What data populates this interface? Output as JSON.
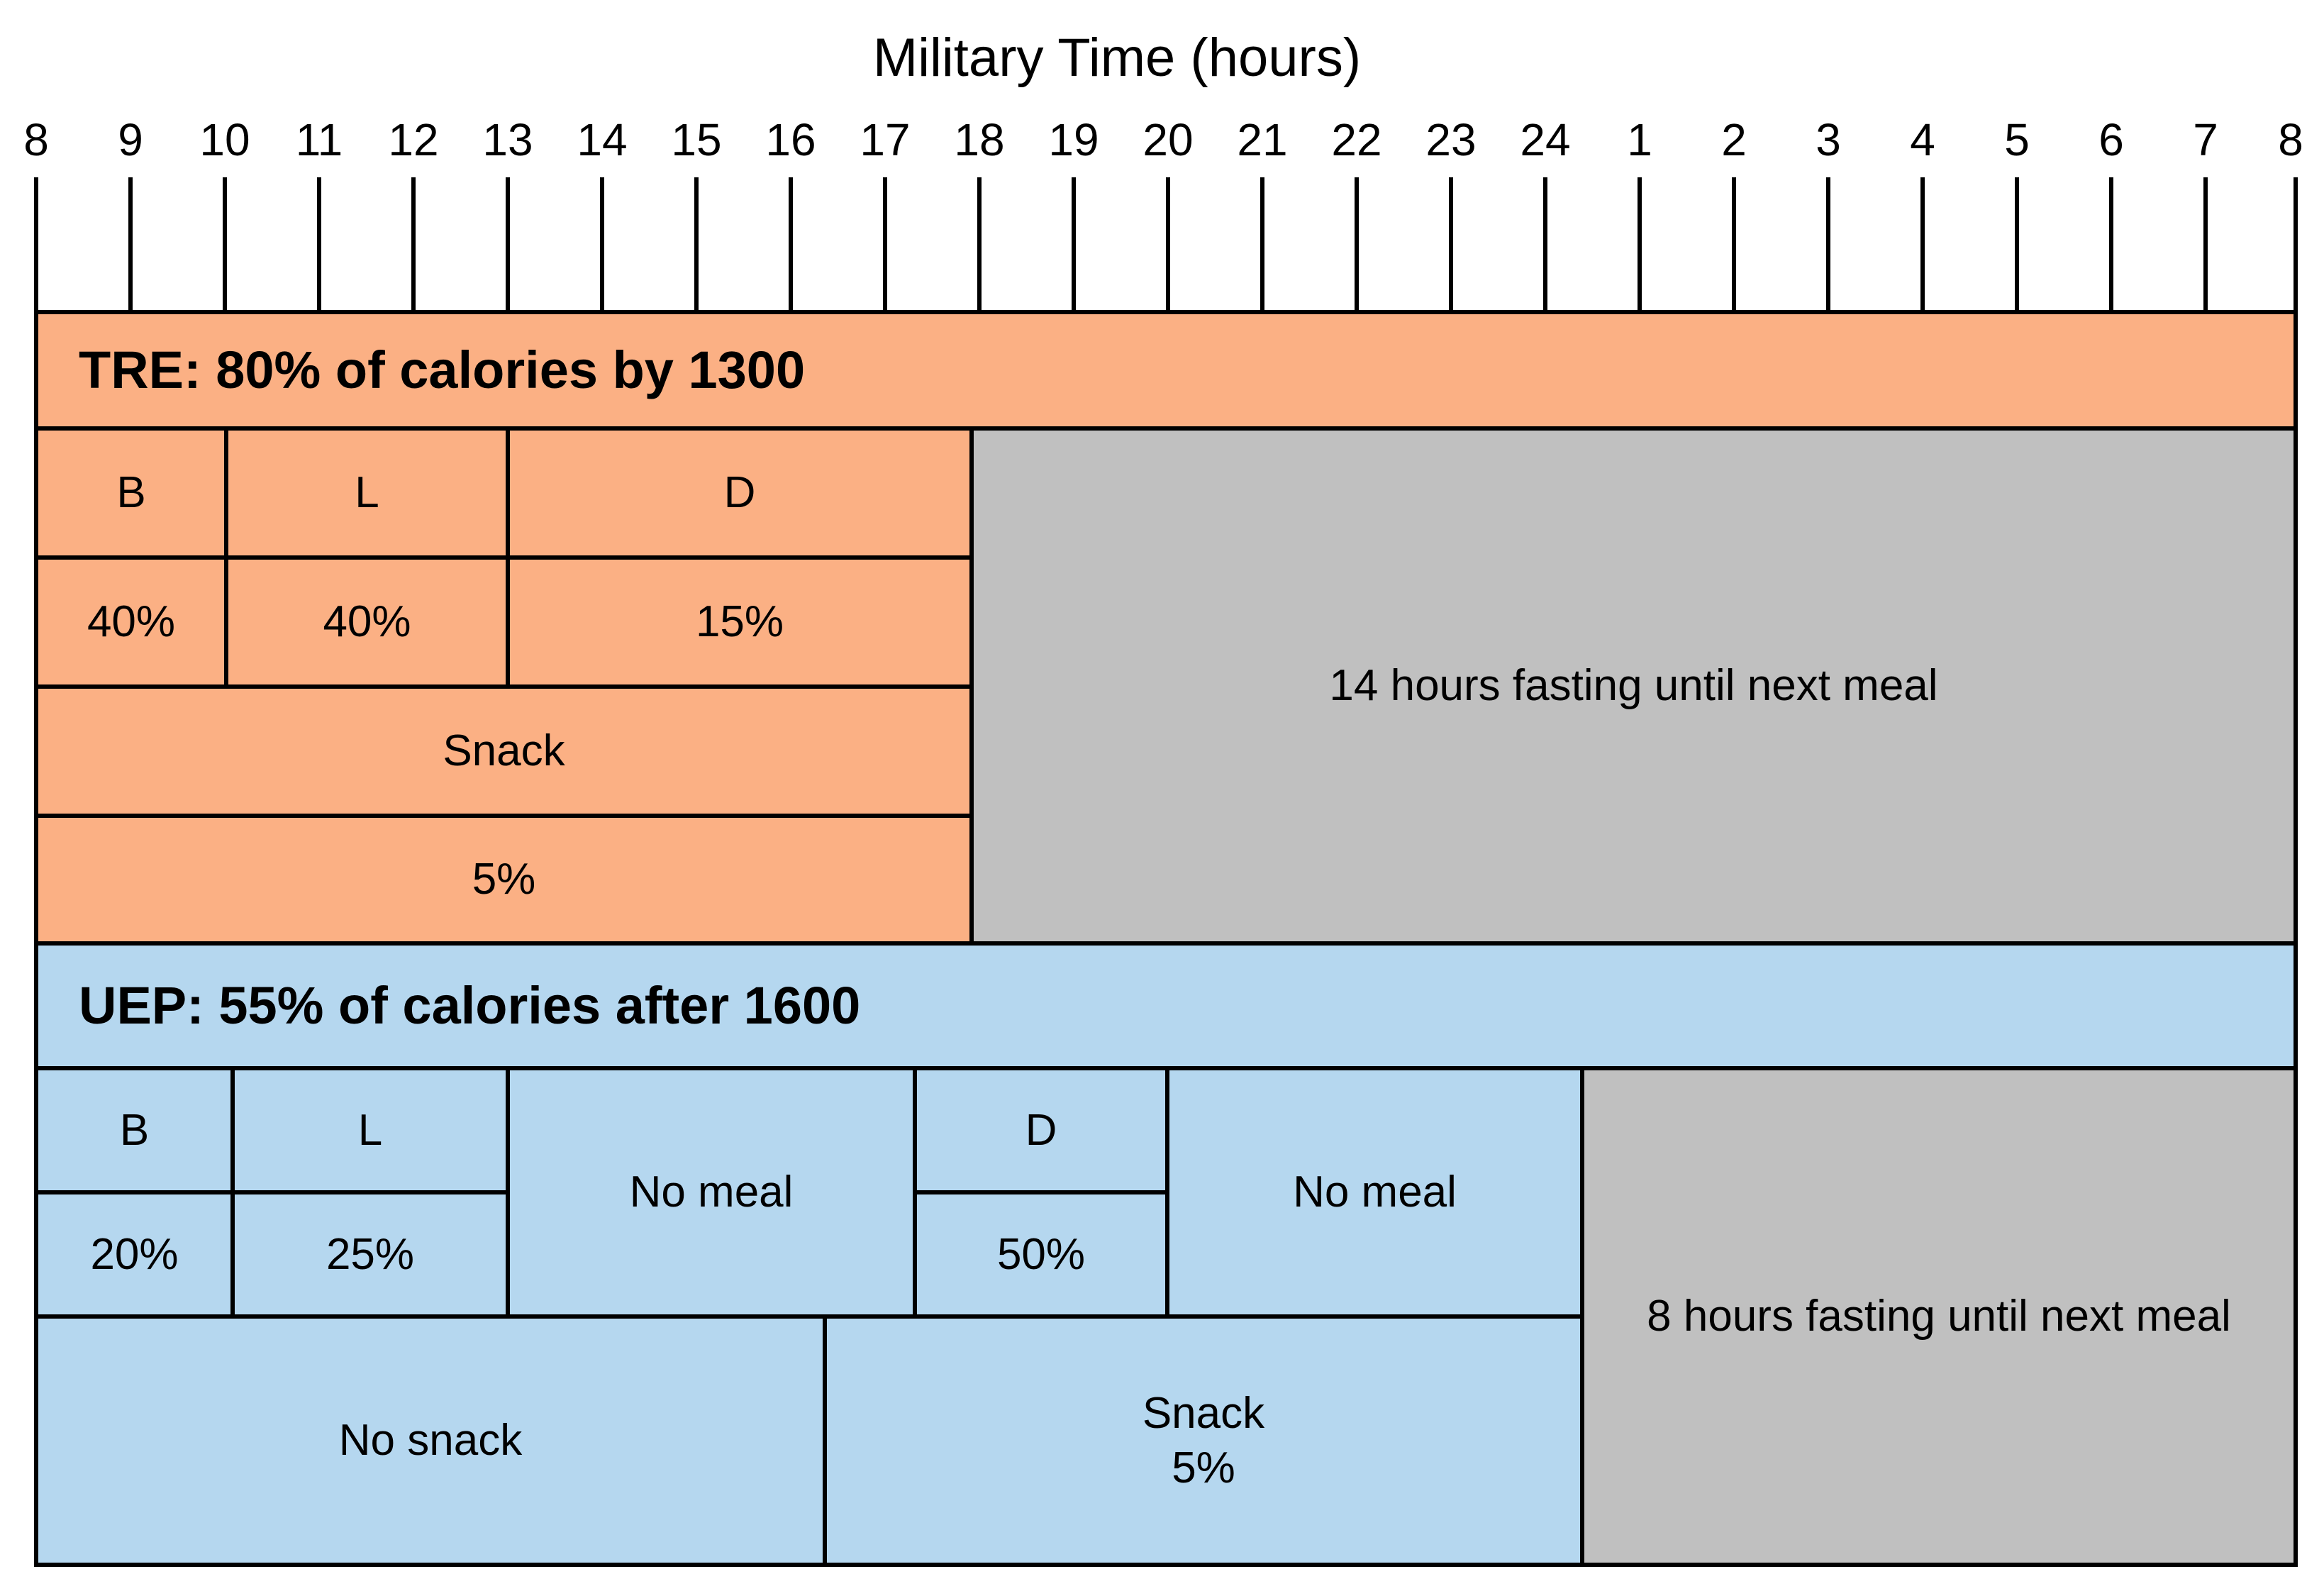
{
  "axis": {
    "title": "Military Time (hours)",
    "ticks": [
      "8",
      "9",
      "10",
      "11",
      "12",
      "13",
      "14",
      "15",
      "16",
      "17",
      "18",
      "19",
      "20",
      "21",
      "22",
      "23",
      "24",
      "1",
      "2",
      "3",
      "4",
      "5",
      "6",
      "7",
      "8"
    ]
  },
  "tre": {
    "header": "TRE: 80% of calories by 1300",
    "breakfast_label": "B",
    "lunch_label": "L",
    "dinner_label": "D",
    "breakfast_pct": "40%",
    "lunch_pct": "40%",
    "dinner_pct": "15%",
    "snack_label": "Snack",
    "snack_pct": "5%",
    "fasting": "14 hours fasting until next meal"
  },
  "uep": {
    "header": "UEP: 55% of calories after 1600",
    "breakfast_label": "B",
    "lunch_label": "L",
    "no_meal_1": "No meal",
    "dinner_label": "D",
    "no_meal_2": "No meal",
    "breakfast_pct": "20%",
    "lunch_pct": "25%",
    "dinner_pct": "50%",
    "no_snack": "No snack",
    "snack_label": "Snack",
    "snack_pct": "5%",
    "fasting": "8 hours fasting until next meal"
  },
  "colors": {
    "tre": "#fbb084",
    "uep": "#b5d7ef",
    "fasting": "#c0c0c0"
  }
}
